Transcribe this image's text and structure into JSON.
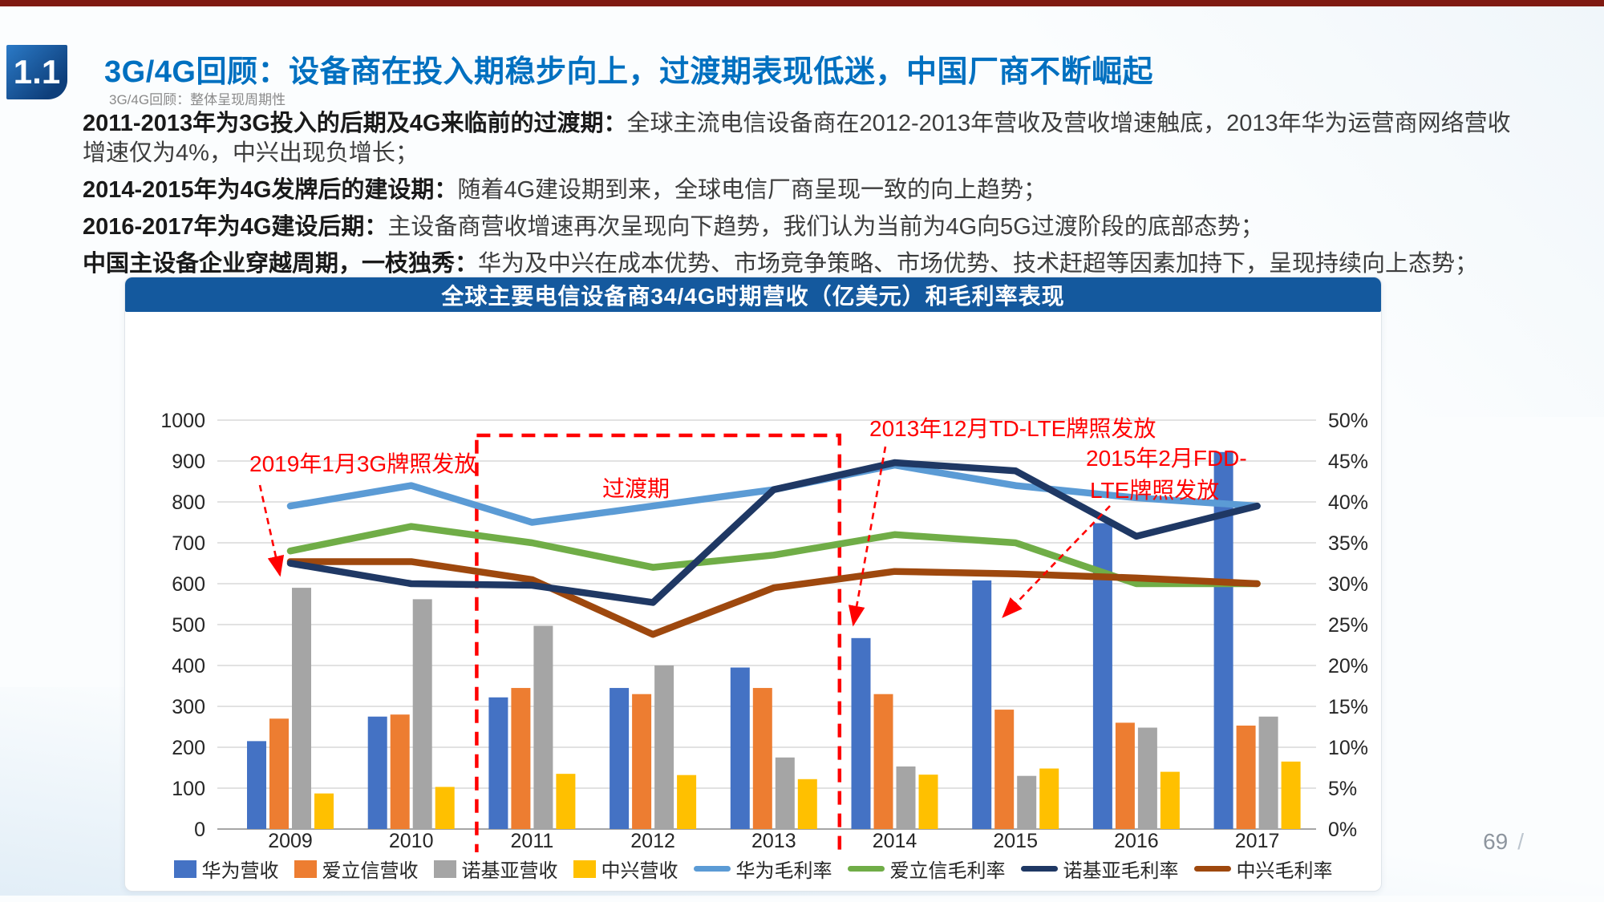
{
  "page": {
    "badge": "1.1",
    "title": "3G/4G回顾：设备商在投入期稳步向上，过渡期表现低迷，中国厂商不断崛起",
    "subtitle": "3G/4G回顾：整体呈现周期性",
    "page_number": "69",
    "page_suffix": "/"
  },
  "paragraphs": [
    {
      "lead": "2011-2013年为3G投入的后期及4G来临前的过渡期：",
      "text": "全球主流电信设备商在2012-2013年营收及营收增速触底，2013年华为运营商网络营收增速仅为4%，中兴出现负增长；"
    },
    {
      "lead": "2014-2015年为4G发牌后的建设期：",
      "text": "随着4G建设期到来，全球电信厂商呈现一致的向上趋势；"
    },
    {
      "lead": "2016-2017年为4G建设后期：",
      "text": "主设备商营收增速再次呈现向下趋势，我们认为当前为4G向5G过渡阶段的底部态势；"
    },
    {
      "lead": "中国主设备企业穿越周期，一枝独秀：",
      "text": "华为及中兴在成本优势、市场竞争策略、市场优势、技术赶超等因素加持下，呈现持续向上态势；"
    }
  ],
  "chart": {
    "title": "全球主要电信设备商34/4G时期营收（亿美元）和毛利率表现"
  },
  "chart_data": {
    "type": "bar+line combo",
    "title": "全球主要电信设备商34/4G时期营收（亿美元）和毛利率表现",
    "categories": [
      "2009",
      "2010",
      "2011",
      "2012",
      "2013",
      "2014",
      "2015",
      "2016",
      "2017"
    ],
    "left_axis": {
      "min": 0,
      "max": 1000,
      "step": 100
    },
    "right_axis": {
      "min": 0,
      "max": 50,
      "step": 5,
      "unit": "%"
    },
    "grid": true,
    "legend_position": "bottom",
    "bar_series": [
      {
        "name": "华为营收",
        "color": "#4472C4",
        "values": [
          215,
          275,
          322,
          345,
          395,
          467,
          608,
          748,
          922
        ]
      },
      {
        "name": "爱立信营收",
        "color": "#ED7D31",
        "values": [
          270,
          280,
          345,
          330,
          345,
          330,
          292,
          260,
          253
        ]
      },
      {
        "name": "诺基亚营收",
        "color": "#A5A5A5",
        "values": [
          590,
          562,
          497,
          400,
          175,
          153,
          130,
          248,
          275
        ]
      },
      {
        "name": "中兴营收",
        "color": "#FFC000",
        "values": [
          87,
          103,
          135,
          132,
          122,
          133,
          148,
          140,
          165
        ]
      }
    ],
    "line_series": [
      {
        "name": "华为毛利率",
        "color": "#5B9BD5",
        "values_pct": [
          39.5,
          42.0,
          37.5,
          39.5,
          41.5,
          44.5,
          42.0,
          40.5,
          39.5
        ]
      },
      {
        "name": "爱立信毛利率",
        "color": "#70AD47",
        "values_pct": [
          34.0,
          37.0,
          35.0,
          32.0,
          33.5,
          36.0,
          35.0,
          30.0,
          30.0
        ]
      },
      {
        "name": "诺基亚毛利率",
        "color": "#1F3864",
        "values_pct": [
          32.5,
          30.0,
          29.8,
          27.7,
          41.5,
          44.8,
          43.8,
          35.8,
          39.5
        ]
      },
      {
        "name": "中兴毛利率",
        "color": "#9E480E",
        "values_pct": [
          32.7,
          32.7,
          30.5,
          23.8,
          29.5,
          31.5,
          31.2,
          30.7,
          30.0
        ]
      }
    ],
    "annotation_color": "#FF0000",
    "annotations": [
      {
        "id": "license-3g",
        "text": "2019年1月3G牌照发放"
      },
      {
        "id": "transition",
        "text": "过渡期"
      },
      {
        "id": "license-td",
        "text": "2013年12月TD-LTE牌照发放"
      },
      {
        "id": "license-fdd",
        "lines": [
          "2015年2月FDD-",
          "LTE牌照发放"
        ]
      }
    ],
    "transition_box": {
      "years": [
        "2011",
        "2013"
      ]
    }
  }
}
